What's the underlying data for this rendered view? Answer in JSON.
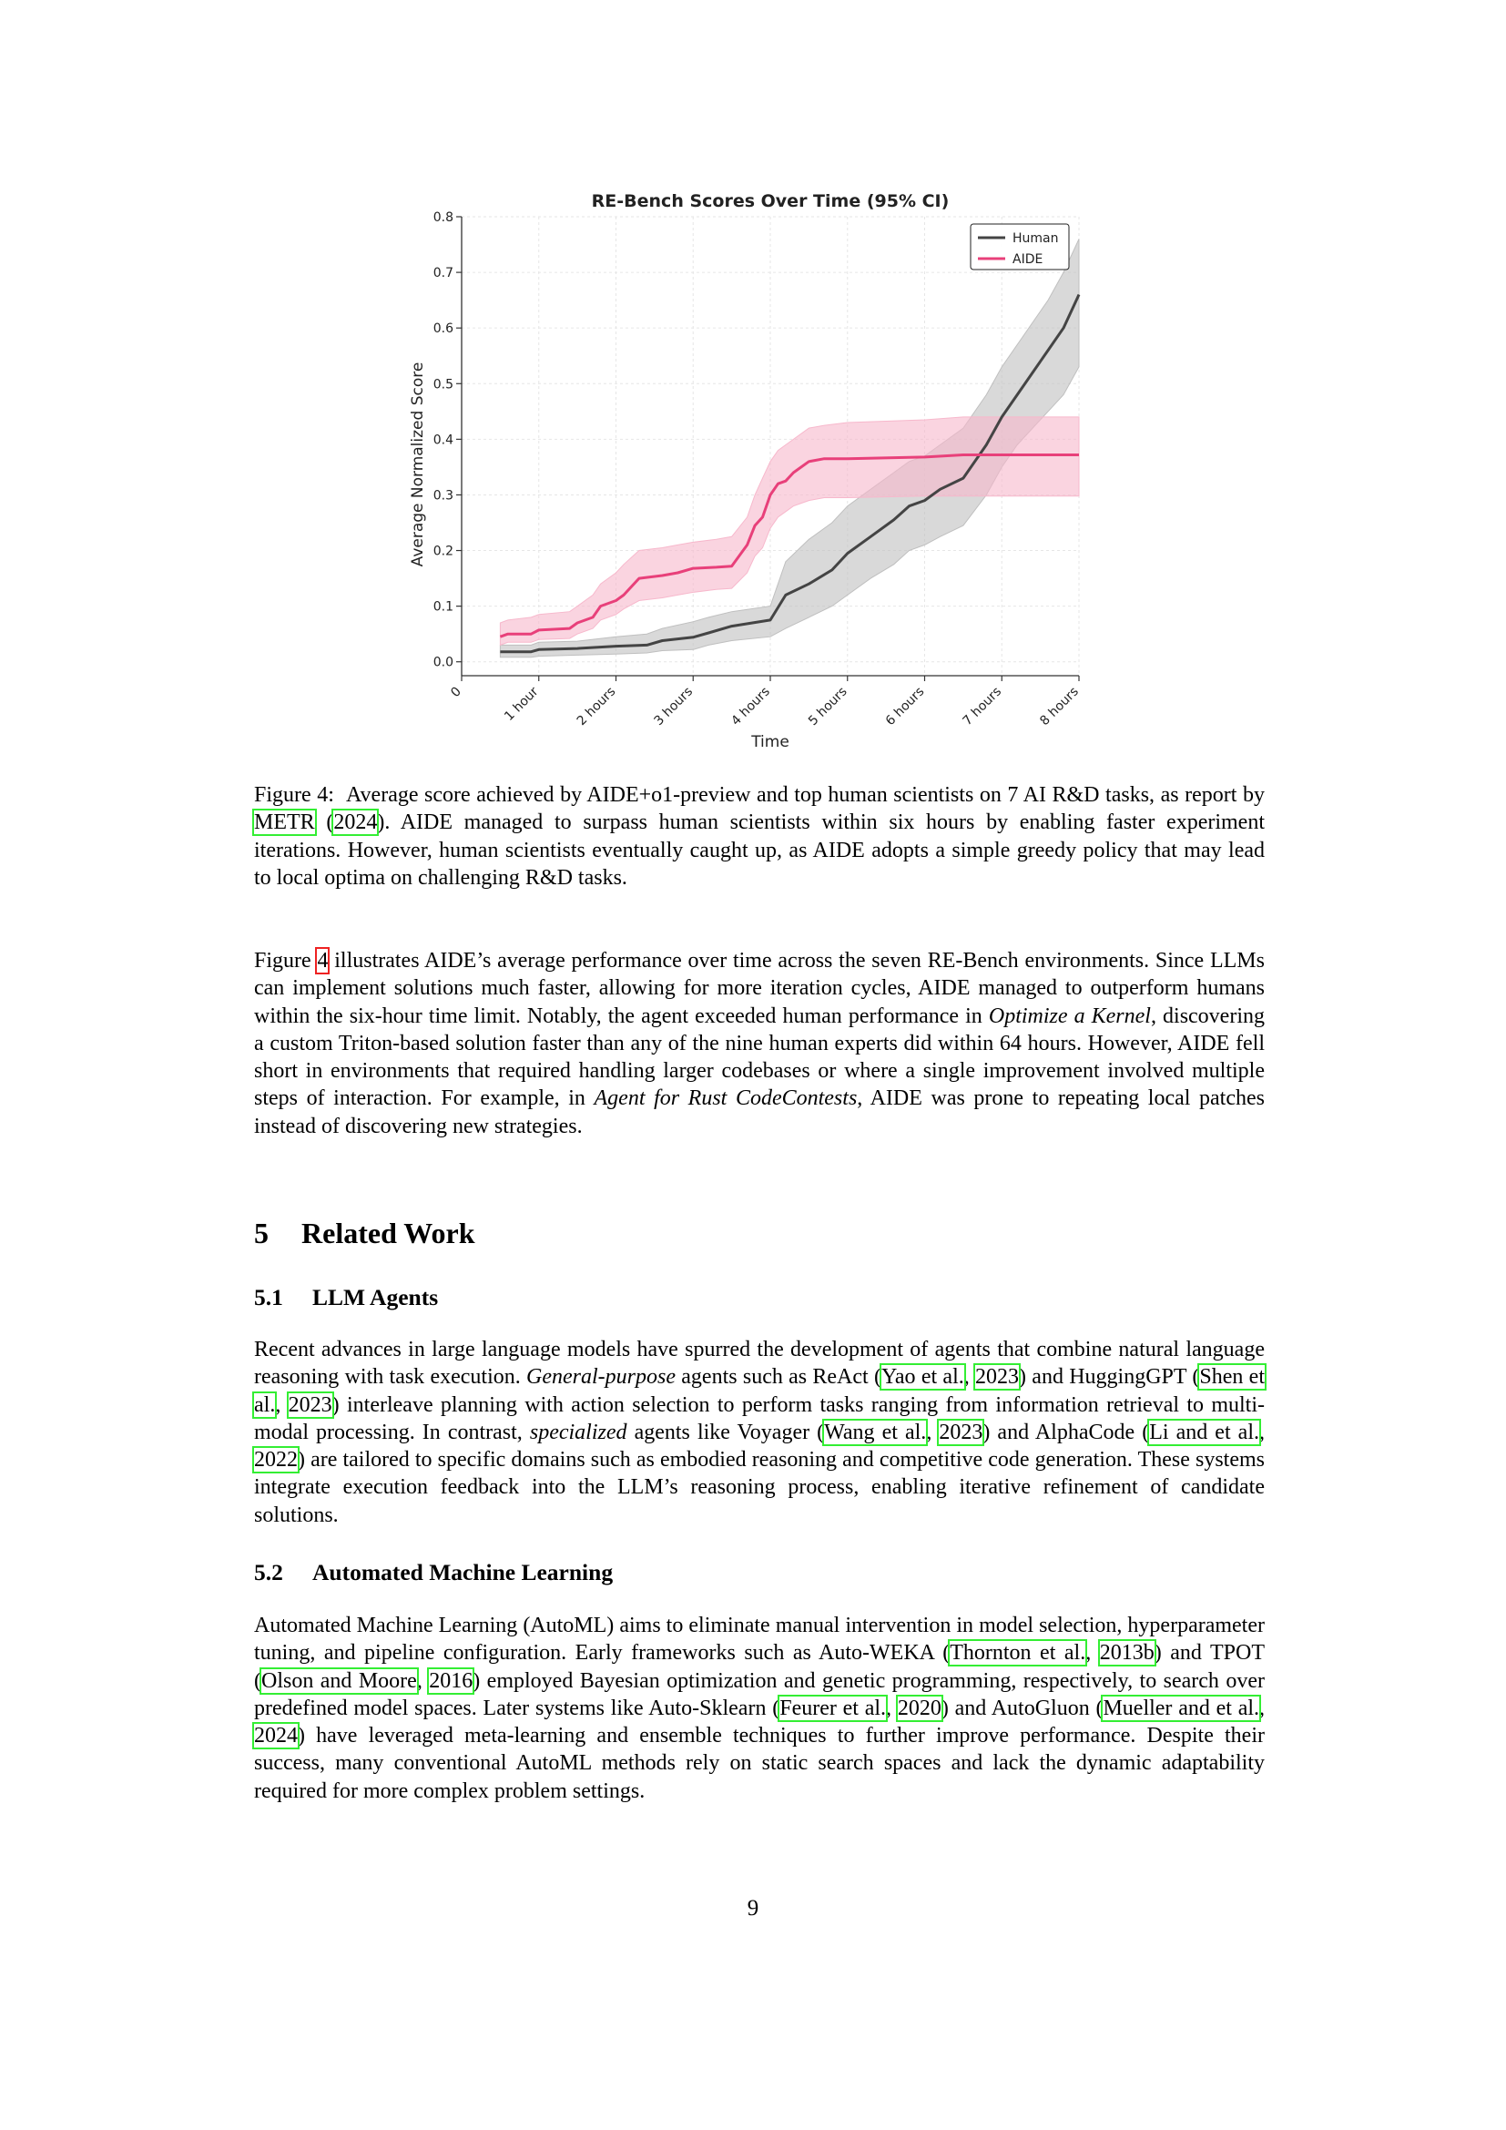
{
  "figure": {
    "caption_label": "Figure 4:",
    "caption_pre": "Average score achieved by AIDE+o1-preview and top human scientists on 7 AI R&D tasks, as report by ",
    "caption_ref1": "METR",
    "caption_mid": " (",
    "caption_ref2": "2024",
    "caption_post": "). AIDE managed to surpass human scientists within six hours by enabling faster experiment iterations. However, human scientists eventually caught up, as AIDE adopts a simple greedy policy that may lead to local optima on challenging R&D tasks."
  },
  "chart_data": {
    "type": "line",
    "title": "RE-Bench Scores Over Time (95% CI)",
    "xlabel": "Time",
    "ylabel": "Average Normalized Score",
    "xlim": [
      0,
      8
    ],
    "ylim": [
      -0.025,
      0.8
    ],
    "x_ticks": [
      0,
      1,
      2,
      3,
      4,
      5,
      6,
      7,
      8
    ],
    "x_tick_labels": [
      "0",
      "1 hour",
      "2 hours",
      "3 hours",
      "4 hours",
      "5 hours",
      "6 hours",
      "7 hours",
      "8 hours"
    ],
    "y_ticks": [
      0.0,
      0.1,
      0.2,
      0.3,
      0.4,
      0.5,
      0.6,
      0.7,
      0.8
    ],
    "y_tick_labels": [
      "0.0",
      "0.1",
      "0.2",
      "0.3",
      "0.4",
      "0.5",
      "0.6",
      "0.7",
      "0.8"
    ],
    "grid": true,
    "legend": "top-right",
    "series": [
      {
        "name": "Human",
        "color": "#444444",
        "band_color": "#bfbfbf",
        "x": [
          0.5,
          0.9,
          1.0,
          1.5,
          2.0,
          2.4,
          2.6,
          3.0,
          3.2,
          3.5,
          4.0,
          4.2,
          4.5,
          4.8,
          5.0,
          5.3,
          5.6,
          5.8,
          6.0,
          6.2,
          6.5,
          6.8,
          7.0,
          7.2,
          7.4,
          7.6,
          7.8,
          8.0
        ],
        "y": [
          0.018,
          0.018,
          0.022,
          0.024,
          0.028,
          0.03,
          0.038,
          0.044,
          0.052,
          0.064,
          0.075,
          0.12,
          0.14,
          0.165,
          0.195,
          0.225,
          0.255,
          0.28,
          0.29,
          0.31,
          0.33,
          0.39,
          0.44,
          0.48,
          0.52,
          0.56,
          0.6,
          0.66
        ],
        "lower": [
          0.008,
          0.008,
          0.01,
          0.012,
          0.014,
          0.016,
          0.02,
          0.022,
          0.03,
          0.038,
          0.045,
          0.06,
          0.08,
          0.1,
          0.12,
          0.15,
          0.175,
          0.2,
          0.21,
          0.225,
          0.245,
          0.3,
          0.35,
          0.39,
          0.42,
          0.45,
          0.48,
          0.53
        ],
        "upper": [
          0.03,
          0.03,
          0.035,
          0.037,
          0.045,
          0.05,
          0.06,
          0.072,
          0.08,
          0.09,
          0.1,
          0.18,
          0.22,
          0.25,
          0.28,
          0.31,
          0.34,
          0.36,
          0.37,
          0.39,
          0.42,
          0.48,
          0.53,
          0.57,
          0.61,
          0.65,
          0.7,
          0.76
        ]
      },
      {
        "name": "AIDE",
        "color": "#e8407a",
        "band_color": "#f7b8cc",
        "x": [
          0.5,
          0.6,
          0.9,
          1.0,
          1.4,
          1.5,
          1.7,
          1.8,
          2.0,
          2.1,
          2.3,
          2.6,
          2.8,
          3.0,
          3.3,
          3.5,
          3.7,
          3.8,
          3.9,
          4.0,
          4.1,
          4.2,
          4.3,
          4.5,
          4.7,
          5.0,
          6.0,
          6.5,
          7.0,
          8.0
        ],
        "y": [
          0.045,
          0.05,
          0.05,
          0.057,
          0.06,
          0.07,
          0.08,
          0.1,
          0.11,
          0.12,
          0.15,
          0.155,
          0.16,
          0.168,
          0.17,
          0.172,
          0.21,
          0.245,
          0.26,
          0.3,
          0.32,
          0.325,
          0.34,
          0.36,
          0.365,
          0.365,
          0.368,
          0.372,
          0.372,
          0.372
        ],
        "lower": [
          0.03,
          0.035,
          0.035,
          0.04,
          0.042,
          0.05,
          0.06,
          0.075,
          0.085,
          0.095,
          0.11,
          0.115,
          0.12,
          0.125,
          0.13,
          0.132,
          0.16,
          0.19,
          0.205,
          0.24,
          0.26,
          0.27,
          0.28,
          0.29,
          0.295,
          0.295,
          0.298,
          0.298,
          0.298,
          0.298
        ],
        "upper": [
          0.07,
          0.075,
          0.08,
          0.085,
          0.09,
          0.1,
          0.12,
          0.14,
          0.16,
          0.175,
          0.2,
          0.205,
          0.21,
          0.215,
          0.22,
          0.225,
          0.26,
          0.3,
          0.33,
          0.36,
          0.38,
          0.39,
          0.4,
          0.42,
          0.425,
          0.43,
          0.435,
          0.44,
          0.44,
          0.44
        ]
      }
    ]
  },
  "para1": {
    "t1": "Figure ",
    "ref1": "4",
    "t2": " illustrates AIDE’s average performance over time across the seven RE-Bench environments. Since LLMs can implement solutions much faster, allowing for more iteration cycles, AIDE managed to outperform humans within the six-hour time limit. Notably, the agent exceeded human performance in ",
    "em1": "Optimize a Kernel",
    "t3": ", discovering a custom Triton-based solution faster than any of the nine human experts did within 64 hours. However, AIDE fell short in environments that required handling larger codebases or where a single improvement involved multiple steps of interaction. For example, in ",
    "em2": "Agent for Rust CodeContests",
    "t4": ", AIDE was prone to repeating local patches instead of discovering new strategies."
  },
  "section5": {
    "num": "5",
    "title": "Related Work"
  },
  "sub51": {
    "num": "5.1",
    "title": "LLM Agents"
  },
  "para2": {
    "t1": "Recent advances in large language models have spurred the development of agents that combine natural language reasoning with task execution. ",
    "em1": "General-purpose",
    "t2": " agents such as ReAct (",
    "r1": "Yao et al.",
    "c1": ", ",
    "r2": "2023",
    "t3": ") and HuggingGPT (",
    "r3": "Shen et al.",
    "c2": ", ",
    "r4": "2023",
    "t4": ") interleave planning with action selection to perform tasks ranging from information retrieval to multi-modal processing. In contrast, ",
    "em2": "specialized",
    "t5": " agents like Voyager (",
    "r5": "Wang et al.",
    "c3": ", ",
    "r6": "2023",
    "t6": ") and AlphaCode (",
    "r7": "Li and et al.",
    "c4": ", ",
    "r8": "2022",
    "t7": ") are tailored to specific domains such as embodied reasoning and competitive code generation. These systems integrate execution feedback into the LLM’s reasoning process, enabling iterative refinement of candidate solutions."
  },
  "sub52": {
    "num": "5.2",
    "title": "Automated Machine Learning"
  },
  "para3": {
    "t1": "Automated Machine Learning (AutoML) aims to eliminate manual intervention in model selection, hyperparameter tuning, and pipeline configuration. Early frameworks such as Auto-WEKA (",
    "r1": "Thornton et al.",
    "c1": ", ",
    "r2": "2013b",
    "t2": ") and TPOT (",
    "r3": "Olson and Moore",
    "c2": ", ",
    "r4": "2016",
    "t3": ") employed Bayesian optimization and genetic programming, respectively, to search over predefined model spaces. Later systems like Auto-Sklearn (",
    "r5": "Feurer et al.",
    "c3": ", ",
    "r6": "2020",
    "t4": ") and AutoGluon (",
    "r7": "Mueller and et al.",
    "c4": ", ",
    "r8": "2024",
    "t5": ") have leveraged meta-learning and ensemble techniques to further improve performance. Despite their success, many conventional AutoML methods rely on static search spaces and lack the dynamic adaptability required for more complex problem settings."
  },
  "page_number": "9"
}
